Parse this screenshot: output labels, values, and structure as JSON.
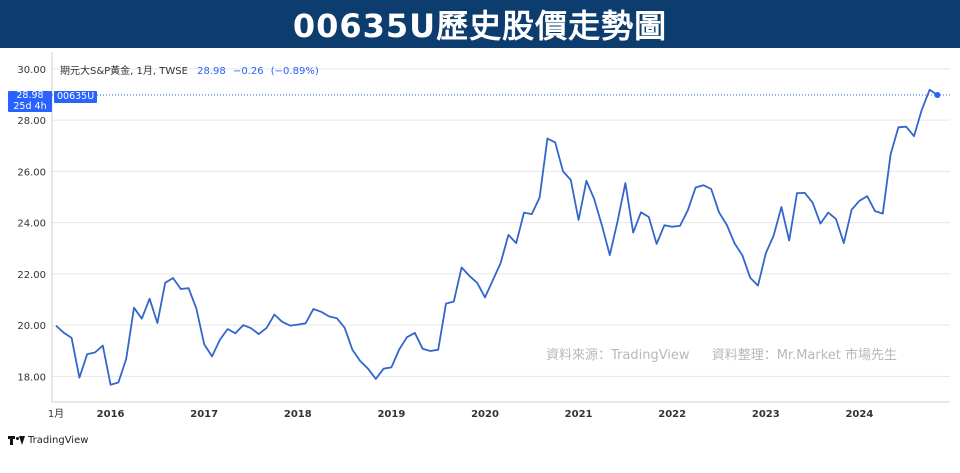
{
  "banner": {
    "title": "00635U歷史股價走勢圖"
  },
  "legend": {
    "name": "期元大S&P黃金, 1月, TWSE",
    "price": "28.98",
    "change": "−0.26",
    "percent": "(−0.89%)"
  },
  "price_tag": {
    "price": "28.98",
    "countdown": "25d 4h"
  },
  "symbol_tag": "00635U",
  "source_note": {
    "left": "資料來源：TradingView",
    "right": "資料整理：Mr.Market 市場先生"
  },
  "footer": {
    "brand": "TradingView"
  },
  "colors": {
    "line": "#3366cc",
    "accent": "#2962ff",
    "banner": "#0d3c6e",
    "grid": "#e6e6e6"
  },
  "chart_data": {
    "type": "line",
    "ylim": [
      17.0,
      30.5
    ],
    "y_ticks": [
      "18.00",
      "20.00",
      "22.00",
      "24.00",
      "26.00",
      "28.00",
      "30.00"
    ],
    "y_tick_values": [
      18,
      20,
      22,
      24,
      26,
      28,
      30
    ],
    "x_ticks": [
      "1月",
      "2016",
      "2017",
      "2018",
      "2019",
      "2020",
      "2021",
      "2022",
      "2023",
      "2024"
    ],
    "x_tick_months": [
      0,
      7,
      19,
      31,
      43,
      55,
      67,
      79,
      91,
      103
    ],
    "current_price": 28.98,
    "series": [
      {
        "values": [
          19.98,
          19.7,
          19.5,
          17.95,
          18.87,
          18.93,
          19.2,
          17.67,
          17.76,
          18.68,
          20.68,
          20.25,
          21.03,
          20.08,
          21.65,
          21.84,
          21.41,
          21.44,
          20.64,
          19.25,
          18.78,
          19.42,
          19.85,
          19.68,
          20.0,
          19.88,
          19.65,
          19.89,
          20.41,
          20.13,
          19.98,
          20.02,
          20.07,
          20.63,
          20.52,
          20.34,
          20.27,
          19.9,
          19.04,
          18.6,
          18.3,
          17.9,
          18.3,
          18.35,
          19.05,
          19.53,
          19.7,
          19.08,
          18.99,
          19.04,
          20.84,
          20.92,
          22.25,
          21.92,
          21.65,
          21.08,
          21.75,
          22.42,
          23.52,
          23.2,
          24.39,
          24.33,
          24.98,
          27.28,
          27.13,
          26.0,
          25.66,
          24.1,
          25.63,
          24.92,
          23.88,
          22.73,
          24.06,
          25.54,
          23.61,
          24.4,
          24.22,
          23.17,
          23.9,
          23.84,
          23.87,
          24.48,
          25.37,
          25.46,
          25.31,
          24.4,
          23.91,
          23.19,
          22.72,
          21.85,
          21.54,
          22.8,
          23.49,
          24.61,
          23.3,
          25.15,
          25.16,
          24.78,
          23.96,
          24.39,
          24.14,
          23.2,
          24.5,
          24.85,
          25.03,
          24.45,
          24.35,
          26.66,
          27.72,
          27.74,
          27.37,
          28.4,
          29.18,
          28.98
        ]
      }
    ]
  }
}
